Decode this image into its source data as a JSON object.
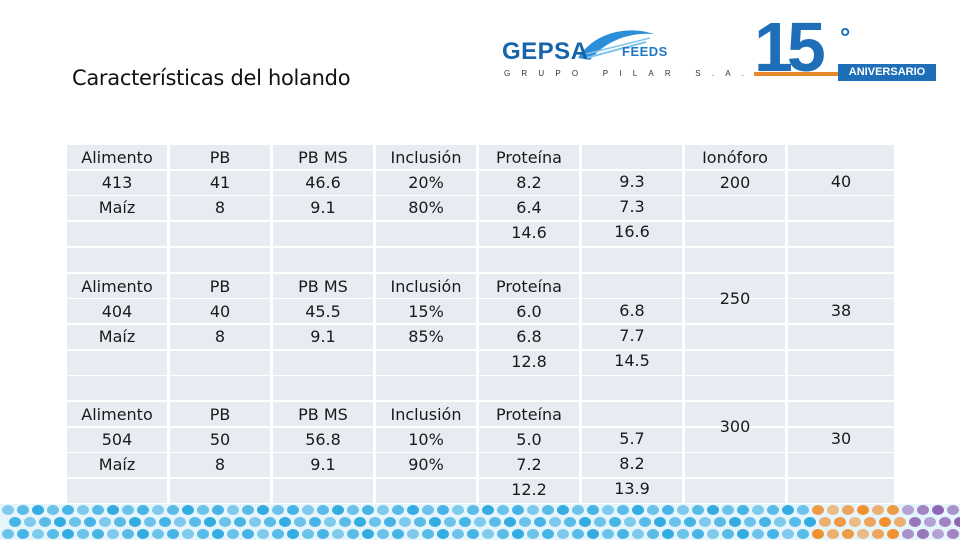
{
  "slide": {
    "title": "Características del holando"
  },
  "logos": {
    "gepsa": {
      "name": "GEPSA",
      "feeds": "FEEDS",
      "subtitle": "GRUPO PILAR S.A."
    },
    "anniversary": {
      "number": "15",
      "degree": "°",
      "label": "ANIVERSARIO"
    }
  },
  "colors": {
    "logo_blue": "#1f6fb8",
    "cell_bg": "#e8ecf2",
    "band_blue": "#29a8e0",
    "band_orange": "#f08a24",
    "band_purple": "#8a5fb0"
  },
  "table": {
    "groups": [
      {
        "alimento": [
          "Alimento",
          "413",
          "Maíz"
        ],
        "pb": [
          "PB",
          "41",
          "8"
        ],
        "pb_ms": [
          "PB MS",
          "46.6",
          "9.1"
        ],
        "inclusion": [
          "Inclusión",
          "20%",
          "80%"
        ],
        "proteina": [
          "Proteína",
          "8.2",
          "6.4",
          "14.6"
        ],
        "values": [
          "9.3",
          "7.3",
          "16.6"
        ],
        "ionoforo": [
          "Ionóforo",
          "200"
        ],
        "last": "40"
      },
      {
        "alimento": [
          "Alimento",
          "404",
          "Maíz"
        ],
        "pb": [
          "PB",
          "40",
          "8"
        ],
        "pb_ms": [
          "PB MS",
          "45.5",
          "9.1"
        ],
        "inclusion": [
          "Inclusión",
          "15%",
          "85%"
        ],
        "proteina": [
          "Proteína",
          "6.0",
          "6.8",
          "12.8"
        ],
        "values": [
          "6.8",
          "7.7",
          "14.5"
        ],
        "ionoforo": [
          "250"
        ],
        "last": "38"
      },
      {
        "alimento": [
          "Alimento",
          "504",
          "Maíz"
        ],
        "pb": [
          "PB",
          "50",
          "8"
        ],
        "pb_ms": [
          "PB MS",
          "56.8",
          "9.1"
        ],
        "inclusion": [
          "Inclusión",
          "10%",
          "90%"
        ],
        "proteina": [
          "Proteína",
          "5.0",
          "7.2",
          "12.2"
        ],
        "values": [
          "5.7",
          "8.2",
          "13.9"
        ],
        "ionoforo": [
          "300"
        ],
        "last": "30"
      }
    ]
  }
}
